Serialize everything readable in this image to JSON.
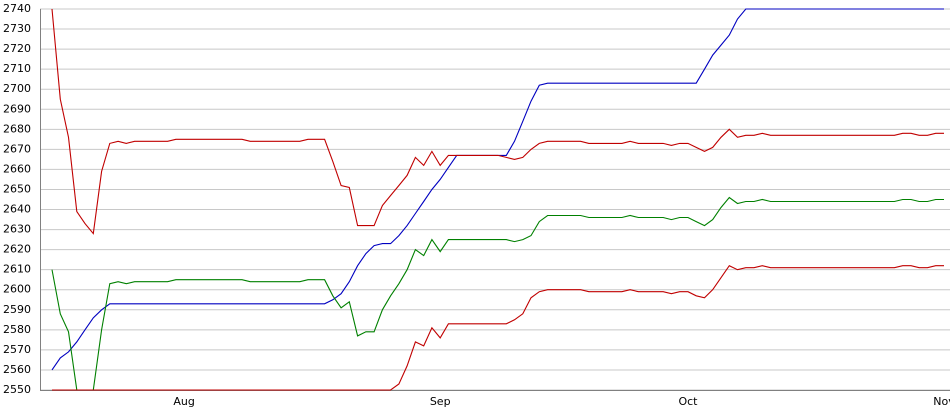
{
  "chart_data": {
    "type": "line",
    "categories": [
      null,
      null,
      null,
      null,
      null,
      null,
      null,
      null,
      null,
      null,
      null,
      null,
      null,
      null,
      null,
      null,
      "Aug",
      null,
      null,
      null,
      null,
      null,
      null,
      null,
      null,
      null,
      null,
      null,
      null,
      null,
      null,
      null,
      null,
      null,
      null,
      null,
      null,
      null,
      null,
      null,
      null,
      null,
      null,
      null,
      null,
      null,
      null,
      "Sep",
      null,
      null,
      null,
      null,
      null,
      null,
      null,
      null,
      null,
      null,
      null,
      null,
      null,
      null,
      null,
      null,
      null,
      null,
      null,
      null,
      null,
      null,
      null,
      null,
      null,
      null,
      null,
      null,
      null,
      "Oct",
      null,
      null,
      null,
      null,
      null,
      null,
      null,
      null,
      null,
      null,
      null,
      null,
      null,
      null,
      null,
      null,
      null,
      null,
      null,
      null,
      null,
      null,
      null,
      null,
      null,
      null,
      null,
      null,
      null,
      null,
      "Nov"
    ],
    "series": [
      {
        "color": "#0000c0",
        "values": [
          2560,
          2566,
          2569,
          2574,
          2580,
          2586,
          2590,
          2593,
          2593,
          2593,
          2593,
          2593,
          2593,
          2593,
          2593,
          2593,
          2593,
          2593,
          2593,
          2593,
          2593,
          2593,
          2593,
          2593,
          2593,
          2593,
          2593,
          2593,
          2593,
          2593,
          2593,
          2593,
          2593,
          2593,
          2595,
          2598,
          2604,
          2612,
          2618,
          2622,
          2623,
          2623,
          2627,
          2632,
          2638,
          2644,
          2650,
          2655,
          2661,
          2667,
          2667,
          2667,
          2667,
          2667,
          2667,
          2667,
          2674,
          2684,
          2694,
          2702,
          2703,
          2703,
          2703,
          2703,
          2703,
          2703,
          2703,
          2703,
          2703,
          2703,
          2703,
          2703,
          2703,
          2703,
          2703,
          2703,
          2703,
          2703,
          2703,
          2710,
          2717,
          2722,
          2727,
          2735,
          2740,
          2740,
          2740,
          2740,
          2740,
          2740,
          2740,
          2740,
          2740,
          2740,
          2740,
          2740,
          2740,
          2740,
          2740,
          2740,
          2740,
          2740,
          2740,
          2740,
          2740,
          2740,
          2740,
          2740,
          2740
        ]
      },
      {
        "color": "#c00000",
        "values": [
          2740,
          2695,
          2676,
          2639,
          2633,
          2628,
          2659,
          2673,
          2674,
          2673,
          2674,
          2674,
          2674,
          2674,
          2674,
          2675,
          2675,
          2675,
          2675,
          2675,
          2675,
          2675,
          2675,
          2675,
          2674,
          2674,
          2674,
          2674,
          2674,
          2674,
          2674,
          2675,
          2675,
          2675,
          2664,
          2652,
          2651,
          2632,
          2632,
          2632,
          2642,
          2647,
          2652,
          2657,
          2666,
          2662,
          2669,
          2662,
          2667,
          2667,
          2667,
          2667,
          2667,
          2667,
          2667,
          2666,
          2665,
          2666,
          2670,
          2673,
          2674,
          2674,
          2674,
          2674,
          2674,
          2673,
          2673,
          2673,
          2673,
          2673,
          2674,
          2673,
          2673,
          2673,
          2673,
          2672,
          2673,
          2673,
          2671,
          2669,
          2671,
          2676,
          2680,
          2676,
          2677,
          2677,
          2678,
          2677,
          2677,
          2677,
          2677,
          2677,
          2677,
          2677,
          2677,
          2677,
          2677,
          2677,
          2677,
          2677,
          2677,
          2677,
          2677,
          2678,
          2678,
          2677,
          2677,
          2678,
          2678
        ]
      },
      {
        "color": "#008000",
        "values": [
          2610,
          2588,
          2579,
          2550,
          2550,
          2550,
          2580,
          2603,
          2604,
          2603,
          2604,
          2604,
          2604,
          2604,
          2604,
          2605,
          2605,
          2605,
          2605,
          2605,
          2605,
          2605,
          2605,
          2605,
          2604,
          2604,
          2604,
          2604,
          2604,
          2604,
          2604,
          2605,
          2605,
          2605,
          2597,
          2591,
          2594,
          2577,
          2579,
          2579,
          2590,
          2597,
          2603,
          2610,
          2620,
          2617,
          2625,
          2619,
          2625,
          2625,
          2625,
          2625,
          2625,
          2625,
          2625,
          2625,
          2624,
          2625,
          2627,
          2634,
          2637,
          2637,
          2637,
          2637,
          2637,
          2636,
          2636,
          2636,
          2636,
          2636,
          2637,
          2636,
          2636,
          2636,
          2636,
          2635,
          2636,
          2636,
          2634,
          2632,
          2635,
          2641,
          2646,
          2643,
          2644,
          2644,
          2645,
          2644,
          2644,
          2644,
          2644,
          2644,
          2644,
          2644,
          2644,
          2644,
          2644,
          2644,
          2644,
          2644,
          2644,
          2644,
          2644,
          2645,
          2645,
          2644,
          2644,
          2645,
          2645
        ]
      },
      {
        "color": "#c00000",
        "values": [
          2550,
          2550,
          2550,
          2550,
          2550,
          2550,
          2550,
          2550,
          2550,
          2550,
          2550,
          2550,
          2550,
          2550,
          2550,
          2550,
          2550,
          2550,
          2550,
          2550,
          2550,
          2550,
          2550,
          2550,
          2550,
          2550,
          2550,
          2550,
          2550,
          2550,
          2550,
          2550,
          2550,
          2550,
          2550,
          2550,
          2550,
          2550,
          2550,
          2550,
          2550,
          2550,
          2553,
          2562,
          2574,
          2572,
          2581,
          2576,
          2583,
          2583,
          2583,
          2583,
          2583,
          2583,
          2583,
          2583,
          2585,
          2588,
          2596,
          2599,
          2600,
          2600,
          2600,
          2600,
          2600,
          2599,
          2599,
          2599,
          2599,
          2599,
          2600,
          2599,
          2599,
          2599,
          2599,
          2598,
          2599,
          2599,
          2597,
          2596,
          2600,
          2606,
          2612,
          2610,
          2611,
          2611,
          2612,
          2611,
          2611,
          2611,
          2611,
          2611,
          2611,
          2611,
          2611,
          2611,
          2611,
          2611,
          2611,
          2611,
          2611,
          2611,
          2611,
          2612,
          2612,
          2611,
          2611,
          2612,
          2612
        ]
      }
    ],
    "ylim": [
      2550,
      2740
    ],
    "yticks": [
      2550,
      2560,
      2570,
      2580,
      2590,
      2600,
      2610,
      2620,
      2630,
      2640,
      2650,
      2660,
      2670,
      2680,
      2690,
      2700,
      2710,
      2720,
      2730,
      2740
    ],
    "grid": true
  }
}
